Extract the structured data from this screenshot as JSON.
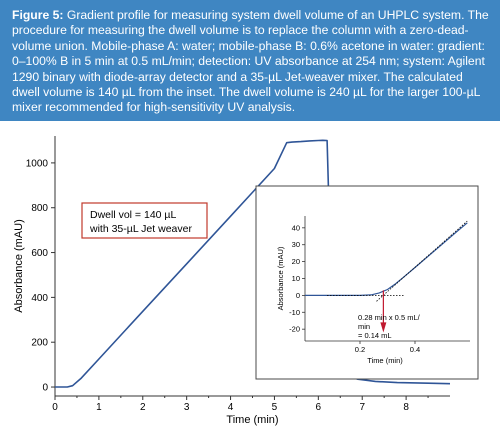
{
  "caption": {
    "label": "Figure 5:",
    "text": "Gradient profile for measuring system dwell volume of an UHPLC system. The procedure for measuring the dwell volume is to replace the column with a zero-dead-volume union. Mobile-phase A: water; mobile-phase B: 0.6% acetone in water: gradient: 0–100% B in 5 min at 0.5 mL/min; detection: UV absorbance at 254 nm; system: Agilent 1290 binary with diode-array detector and a 35-µL Jet-weaver mixer. The calculated dwell volume is 140 µL from the inset. The dwell volume is 240 µL for the larger 100-µL mixer recommended for high-sensitivity UV analysis."
  },
  "colors": {
    "caption_bg": "#3f86c2",
    "figure_bg": "#d6e3ef",
    "trace": "#2f5597",
    "annotation_border": "#c0392b",
    "arrow": "#c0182f"
  },
  "chart_data": [
    {
      "type": "line",
      "xlabel": "Time (min)",
      "ylabel": "Absorbance (mAU)",
      "xlim": [
        0,
        9
      ],
      "ylim": [
        -40,
        1120
      ],
      "xticks": [
        "0",
        "1",
        "2",
        "3",
        "4",
        "5",
        "6",
        "7",
        "8"
      ],
      "yticks": [
        "0",
        "200",
        "400",
        "600",
        "800",
        "1000"
      ],
      "series": [
        {
          "x": [
            0,
            0.1,
            0.28,
            0.4,
            0.6,
            1,
            2,
            3,
            4,
            5,
            5.28,
            5.4,
            5.6,
            5.8,
            6.0,
            6.1,
            6.2,
            6.3,
            6.4,
            6.6,
            6.9,
            7.3,
            7.8,
            8.5,
            9.0
          ],
          "y": [
            0,
            0,
            0,
            6,
            40,
            125,
            338,
            550,
            762,
            975,
            1090,
            1093,
            1095,
            1098,
            1100,
            1101,
            1100,
            400,
            120,
            55,
            35,
            25,
            20,
            17,
            15
          ]
        }
      ],
      "annotations": [
        "Dwell vol = 140 µL",
        "with 35-µL Jet weaver"
      ]
    },
    {
      "type": "line",
      "inset": true,
      "xlabel": "Time (min)",
      "ylabel": "Absorbance (mAU)",
      "xlim": [
        0,
        0.6
      ],
      "ylim": [
        -27,
        47
      ],
      "xticks": [
        "0.2",
        "0.4"
      ],
      "yticks": [
        "-20",
        "-10",
        "0",
        "10",
        "20",
        "30",
        "40"
      ],
      "series": [
        {
          "x": [
            0,
            0.05,
            0.1,
            0.15,
            0.2,
            0.24,
            0.27,
            0.3,
            0.33,
            0.36,
            0.4,
            0.45,
            0.5,
            0.55,
            0.59
          ],
          "y": [
            0,
            0,
            0,
            0,
            0,
            0.3,
            1.5,
            3.5,
            7,
            11,
            16.5,
            23.5,
            30.5,
            37.5,
            43
          ]
        }
      ],
      "annotations": [
        "0.28 min x 0.5 mL/",
        "min",
        "= 0.14 mL"
      ]
    }
  ]
}
